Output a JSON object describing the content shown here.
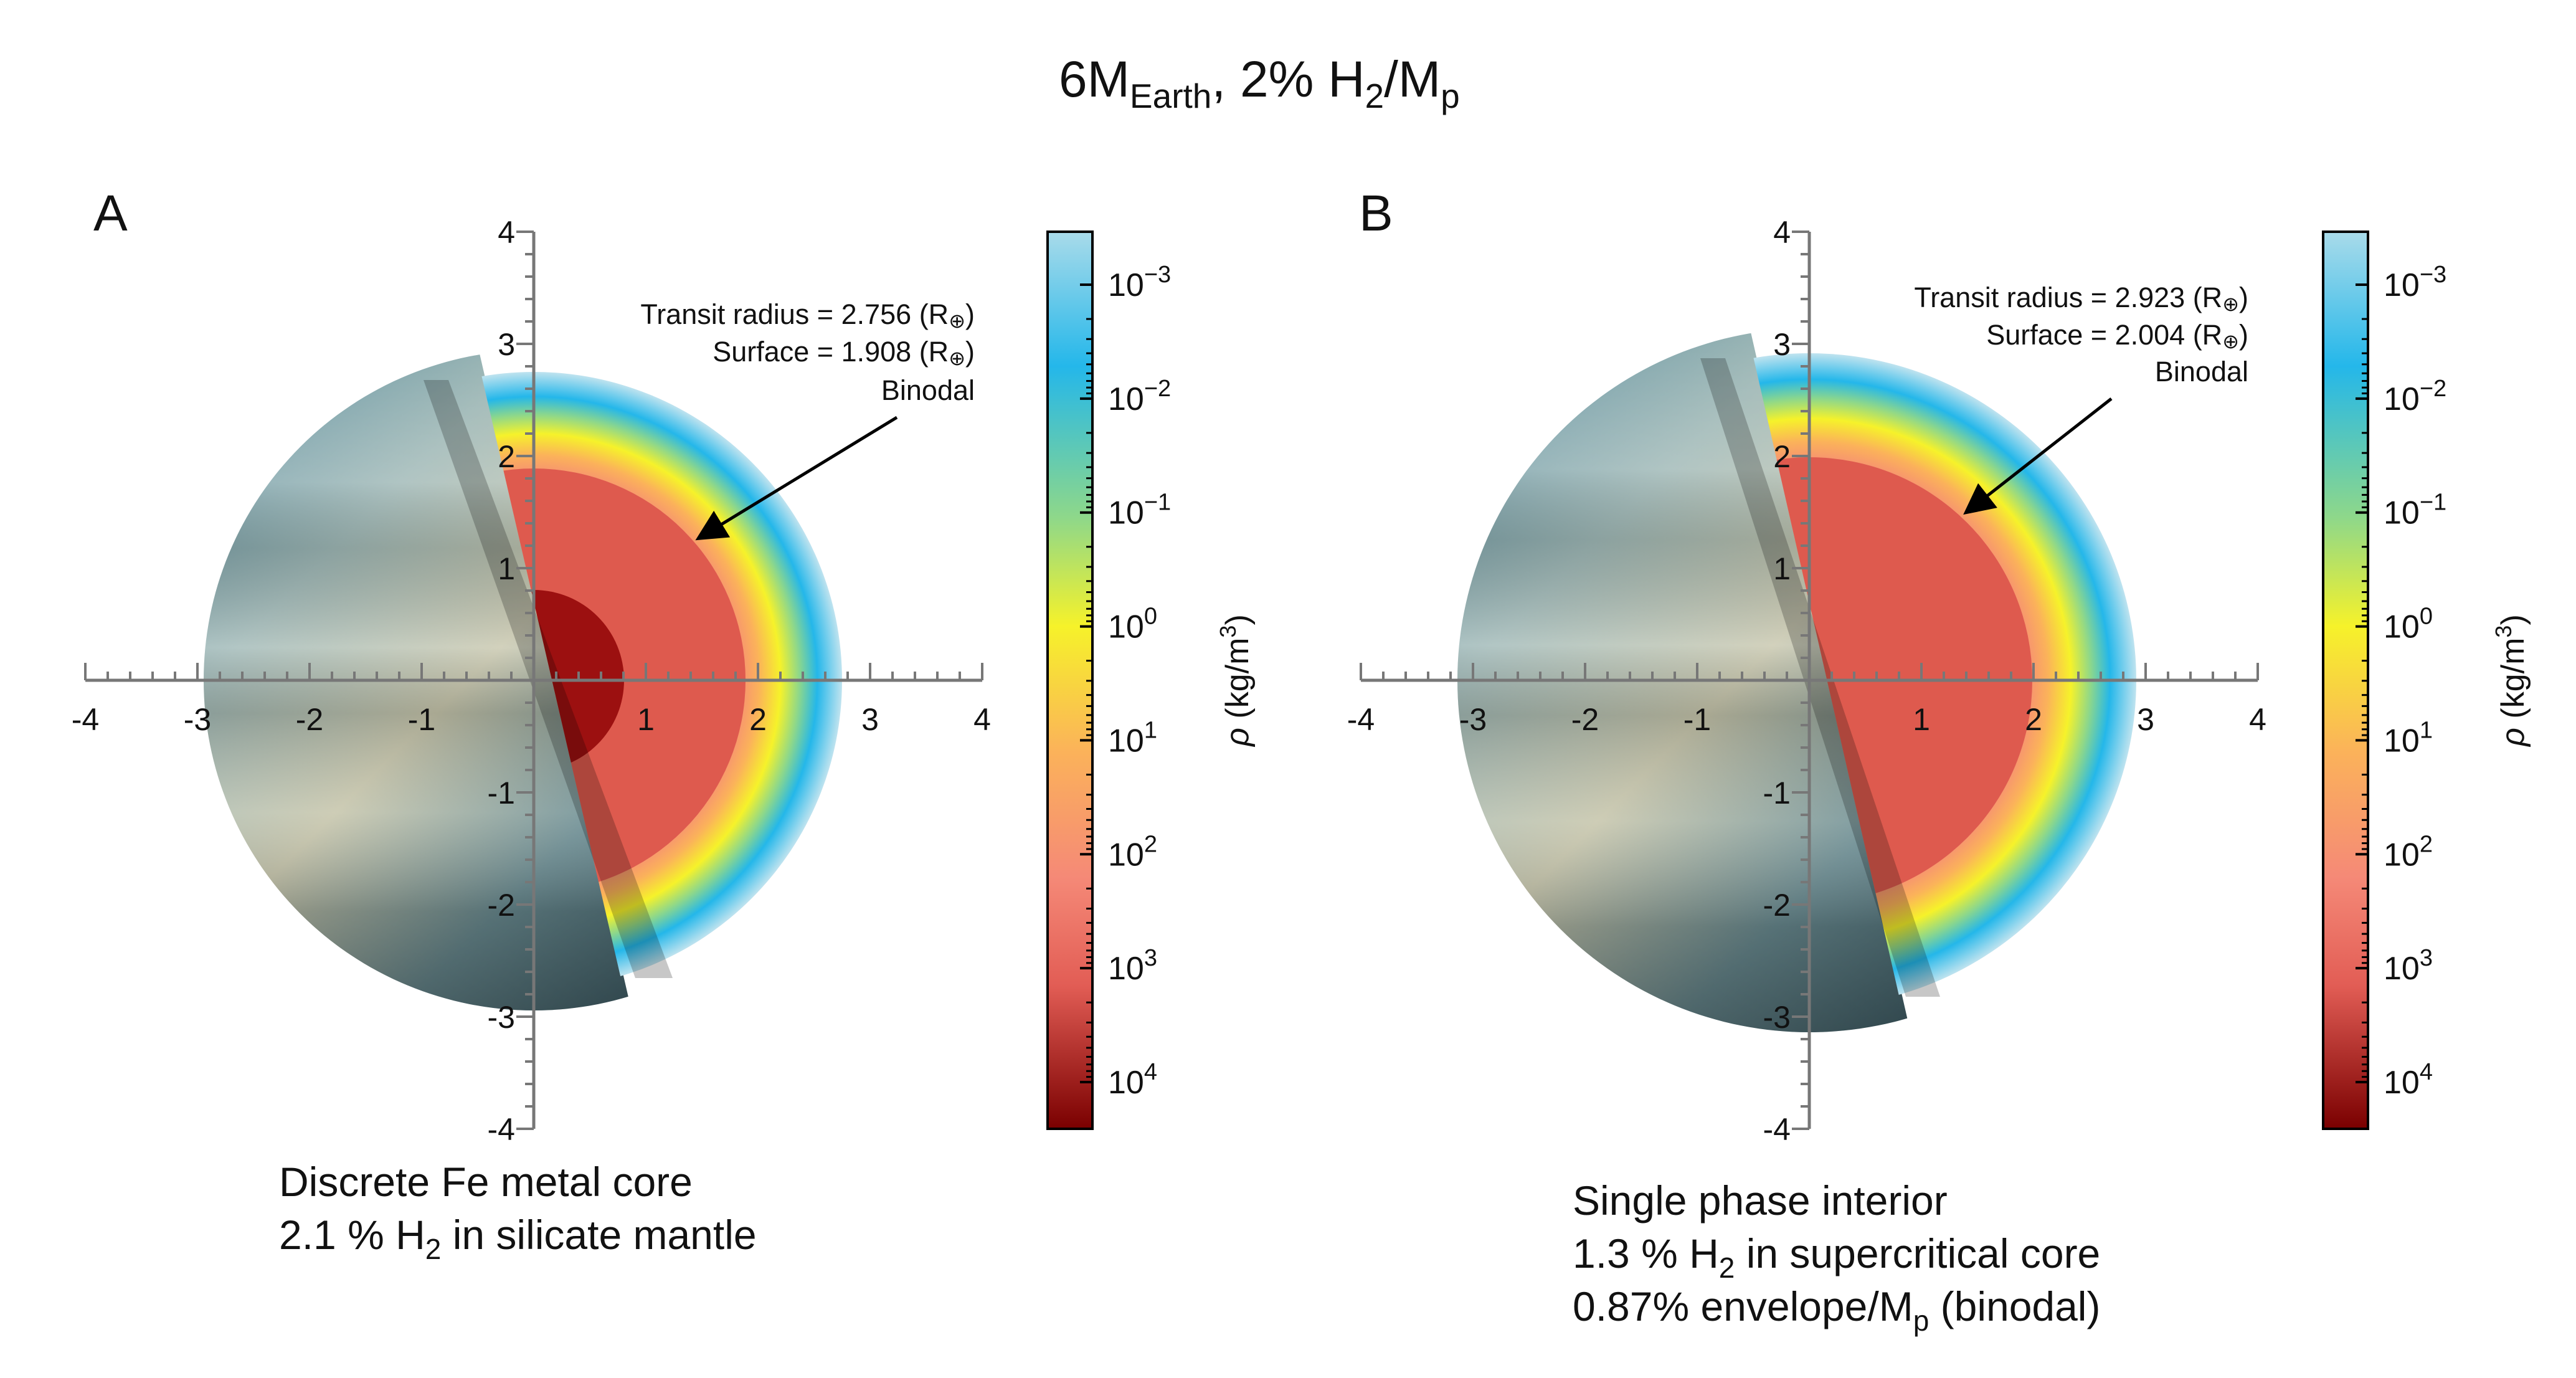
{
  "title": {
    "prefix": "6M",
    "sub1": "Earth",
    "mid": ", 2% H",
    "sub2": "2",
    "slash": "/M",
    "sub3": "p"
  },
  "colorbar": {
    "label_main": "ρ (kg/m",
    "label_sup": "3",
    "label_end": ")",
    "ticks": [
      {
        "base": "10",
        "exp": "−3"
      },
      {
        "base": "10",
        "exp": "−2"
      },
      {
        "base": "10",
        "exp": "−1"
      },
      {
        "base": "10",
        "exp": "0"
      },
      {
        "base": "10",
        "exp": "1"
      },
      {
        "base": "10",
        "exp": "2"
      },
      {
        "base": "10",
        "exp": "3"
      },
      {
        "base": "10",
        "exp": "4"
      }
    ],
    "colors": [
      "#a9dbea",
      "#24b7ea",
      "#8fd889",
      "#f6f22a",
      "#fbb25a",
      "#f58977",
      "#e25d55",
      "#7a0000"
    ]
  },
  "axes": {
    "x_ticks": [
      "-4",
      "-3",
      "-2",
      "-1",
      "1",
      "2",
      "3",
      "4"
    ],
    "y_ticks": [
      "4",
      "3",
      "2",
      "1",
      "-1",
      "-2",
      "-3",
      "-4"
    ]
  },
  "panelA": {
    "letter": "A",
    "transit": "Transit radius = 2.756 (R",
    "surface": "Surface = 1.908 (R",
    "r_symbol": "⊕",
    "close": ")",
    "binodal": "Binodal",
    "caption1": "Discrete Fe metal core",
    "caption2_pre": "2.1 % H",
    "caption2_sub": "2",
    "caption2_post": " in silicate mantle",
    "transit_radius": 2.756,
    "surface_radius": 1.908,
    "core_radius": 0.8
  },
  "panelB": {
    "letter": "B",
    "transit": "Transit radius = 2.923 (R",
    "surface": "Surface = 2.004 (R",
    "r_symbol": "⊕",
    "close": ")",
    "binodal": "Binodal",
    "caption1": "Single phase interior",
    "caption2_pre": "1.3 % H",
    "caption2_sub": "2",
    "caption2_post": " in supercritical core",
    "caption3_pre": "0.87% envelope/M",
    "caption3_sub": "p",
    "caption3_post": " (binodal)",
    "transit_radius": 2.923,
    "surface_radius": 2.004
  }
}
